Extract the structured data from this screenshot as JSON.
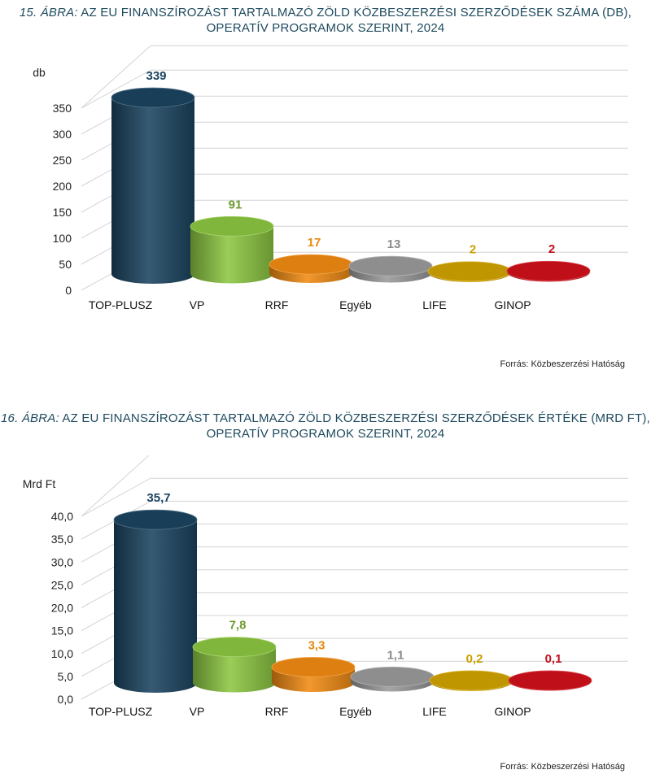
{
  "colors": {
    "top_plusz": "#1b4460",
    "vp": "#8cc641",
    "rrf": "#f08a12",
    "egyeb": "#9a9a9a",
    "life": "#d1a300",
    "ginop": "#d0101a",
    "title": "#1e4a5e"
  },
  "chart_data": [
    {
      "type": "bar",
      "fig_label": "15. ÁBRA:",
      "title_line1": "AZ EU FINANSZÍROZÁST TARTALMAZÓ ZÖLD  KÖZBESZERZÉSI SZERZŐDÉSEK SZÁMA (DB),",
      "title_line2": "OPERATÍV PROGRAMOK SZERINT, 2024",
      "ylabel": "db",
      "ylim": [
        0,
        350
      ],
      "yticks": [
        "0",
        "50",
        "100",
        "150",
        "200",
        "250",
        "300",
        "350"
      ],
      "ytick_values": [
        0,
        50,
        100,
        150,
        200,
        250,
        300,
        350
      ],
      "categories": [
        "TOP-PLUSZ",
        "VP",
        "RRF",
        "Egyéb",
        "LIFE",
        "GINOP"
      ],
      "values": [
        339,
        91,
        17,
        13,
        2,
        2
      ],
      "value_labels": [
        "339",
        "91",
        "17",
        "13",
        "2",
        "2"
      ],
      "source": "Forrás: Közbeszerzési Hatóság"
    },
    {
      "type": "bar",
      "fig_label": "16. ÁBRA:",
      "title_line1": "AZ EU FINANSZÍROZÁST TARTALMAZÓ ZÖLD  KÖZBESZERZÉSI SZERZŐDÉSEK ÉRTÉKE (MRD FT),",
      "title_line2": "OPERATÍV PROGRAMOK SZERINT, 2024",
      "ylabel": "Mrd Ft",
      "ylim": [
        0,
        40
      ],
      "yticks": [
        "0,0",
        "5,0",
        "10,0",
        "15,0",
        "20,0",
        "25,0",
        "30,0",
        "35,0",
        "40,0"
      ],
      "ytick_values": [
        0,
        5,
        10,
        15,
        20,
        25,
        30,
        35,
        40
      ],
      "categories": [
        "TOP-PLUSZ",
        "VP",
        "RRF",
        "Egyéb",
        "LIFE",
        "GINOP"
      ],
      "values": [
        35.7,
        7.8,
        3.3,
        1.1,
        0.2,
        0.1
      ],
      "value_labels": [
        "35,7",
        "7,8",
        "3,3",
        "1,1",
        "0,2",
        "0,1"
      ],
      "source": "Forrás: Közbeszerzési Hatóság"
    }
  ]
}
